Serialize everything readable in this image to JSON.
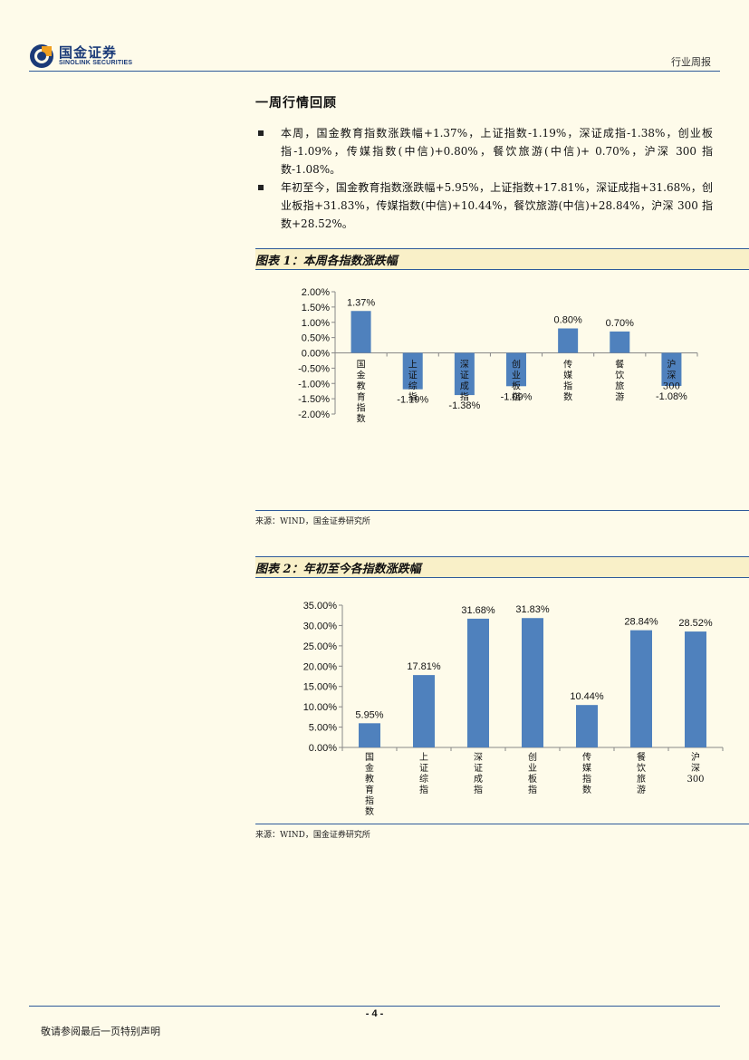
{
  "header": {
    "logo_cn": "国金证券",
    "logo_en": "SINOLINK SECURITIES",
    "report_type": "行业周报"
  },
  "section": {
    "title": "一周行情回顾",
    "bullets": [
      "本周，国金教育指数涨跌幅+1.37%，上证指数-1.19%，深证成指-1.38%，创业板指-1.09%，传媒指数(中信)+0.80%，餐饮旅游(中信)+ 0.70%，沪深 300 指数-1.08%。",
      "年初至今，国金教育指数涨跌幅+5.95%，上证指数+17.81%，深证成指+31.68%，创业板指+31.83%，传媒指数(中信)+10.44%，餐饮旅游(中信)+28.84%，沪深 300 指数+28.52%。"
    ]
  },
  "figures": [
    {
      "title": "图表 1：本周各指数涨跌幅",
      "source": "来源：WIND，国金证券研究所"
    },
    {
      "title": "图表 2：年初至今各指数涨跌幅",
      "source": "来源：WIND，国金证券研究所"
    }
  ],
  "footer": {
    "page": "- 4 -",
    "disclaimer": "敬请参阅最后一页特别声明"
  },
  "colors": {
    "bar": "#4f81bd",
    "rule": "#2e5a9a"
  },
  "chart_data": [
    {
      "type": "bar",
      "title": "",
      "categories": [
        "国金教育指数",
        "上证综指",
        "深证成指",
        "创业板指",
        "传媒指数",
        "餐饮旅游",
        "沪深300"
      ],
      "values": [
        1.37,
        -1.19,
        -1.38,
        -1.09,
        0.8,
        0.7,
        -1.08
      ],
      "data_labels": [
        "1.37%",
        "-1.19%",
        "-1.38%",
        "-1.09%",
        "0.80%",
        "0.70%",
        "-1.08%"
      ],
      "yticks": [
        "2.00%",
        "1.50%",
        "1.00%",
        "0.50%",
        "0.00%",
        "-0.50%",
        "-1.00%",
        "-1.50%",
        "-2.00%"
      ],
      "ylim": [
        -2.0,
        2.0
      ],
      "grid": false
    },
    {
      "type": "bar",
      "title": "",
      "categories": [
        "国金教育指数",
        "上证综指",
        "深证成指",
        "创业板指",
        "传媒指数",
        "餐饮旅游",
        "沪深300"
      ],
      "values": [
        5.95,
        17.81,
        31.68,
        31.83,
        10.44,
        28.84,
        28.52
      ],
      "data_labels": [
        "5.95%",
        "17.81%",
        "31.68%",
        "31.83%",
        "10.44%",
        "28.84%",
        "28.52%"
      ],
      "yticks": [
        "35.00%",
        "30.00%",
        "25.00%",
        "20.00%",
        "15.00%",
        "10.00%",
        "5.00%",
        "0.00%"
      ],
      "ylim": [
        0,
        35
      ],
      "grid": false
    }
  ]
}
